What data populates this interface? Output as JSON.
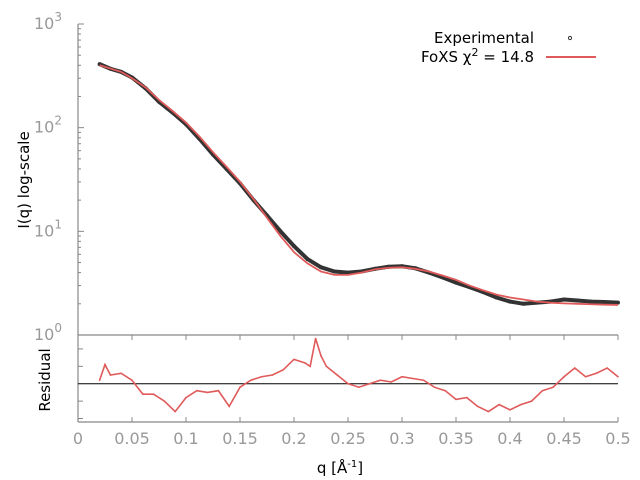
{
  "chart_data": [
    {
      "type": "line",
      "ylabel": "I(q) log-scale",
      "yscale": "log",
      "ylim": [
        1,
        1000
      ],
      "xlim": [
        0,
        0.5
      ],
      "ytick_labels": [
        {
          "base": "10",
          "exp": "0"
        },
        {
          "base": "10",
          "exp": "1"
        },
        {
          "base": "10",
          "exp": "2"
        },
        {
          "base": "10",
          "exp": "3"
        }
      ],
      "legend": {
        "position": "top-right",
        "experimental": "Experimental",
        "foxs_prefix": "FoXS χ",
        "foxs_exp": "2",
        "foxs_suffix": " = 14.8"
      },
      "grid": false,
      "colors": {
        "experimental": "#333333",
        "foxs": "#e05a5a"
      },
      "x": [
        0.02,
        0.03,
        0.04,
        0.05,
        0.0625,
        0.075,
        0.0875,
        0.1,
        0.1125,
        0.125,
        0.1375,
        0.15,
        0.1625,
        0.175,
        0.1875,
        0.2,
        0.2125,
        0.225,
        0.2375,
        0.25,
        0.2625,
        0.275,
        0.2875,
        0.3,
        0.3125,
        0.325,
        0.3375,
        0.35,
        0.3625,
        0.375,
        0.3875,
        0.4,
        0.4125,
        0.425,
        0.4375,
        0.45,
        0.4625,
        0.475,
        0.4875,
        0.5
      ],
      "series": [
        {
          "name": "Experimental",
          "values": [
            410,
            370,
            345,
            305,
            240,
            178,
            140,
            108,
            78,
            55,
            40,
            29,
            20,
            14.2,
            10,
            7.2,
            5.4,
            4.5,
            4.1,
            4.0,
            4.1,
            4.35,
            4.55,
            4.6,
            4.4,
            4.0,
            3.6,
            3.2,
            2.9,
            2.6,
            2.3,
            2.1,
            2.0,
            2.05,
            2.1,
            2.2,
            2.15,
            2.1,
            2.08,
            2.05
          ]
        },
        {
          "name": "FoXS χ2 = 14.8",
          "values": [
            400,
            372,
            345,
            300,
            245,
            185,
            145,
            112,
            82,
            58,
            42,
            30,
            20.5,
            13.5,
            9.0,
            6.3,
            4.9,
            4.1,
            3.8,
            3.8,
            4.0,
            4.3,
            4.45,
            4.5,
            4.35,
            4.1,
            3.75,
            3.4,
            3.0,
            2.7,
            2.45,
            2.3,
            2.2,
            2.1,
            2.05,
            2.02,
            2.0,
            1.98,
            1.96,
            1.95
          ]
        }
      ]
    },
    {
      "type": "line",
      "ylabel": "Residual",
      "xlabel_prefix": "q [Å",
      "xlabel_exp": "-1",
      "xlabel_suffix": "]",
      "xlim": [
        0,
        0.5
      ],
      "xtick_labels": [
        "0",
        "0.05",
        "0.1",
        "0.15",
        "0.2",
        "0.25",
        "0.3",
        "0.35",
        "0.4",
        "0.45",
        "0.5"
      ],
      "ylim": [
        -2.2,
        2.8
      ],
      "zero_line": 0,
      "colors": {
        "residual": "#e05a5a",
        "zero": "#000000"
      },
      "x": [
        0.02,
        0.025,
        0.03,
        0.04,
        0.05,
        0.06,
        0.07,
        0.08,
        0.09,
        0.1,
        0.11,
        0.12,
        0.13,
        0.14,
        0.15,
        0.16,
        0.17,
        0.18,
        0.19,
        0.2,
        0.21,
        0.215,
        0.22,
        0.225,
        0.23,
        0.24,
        0.25,
        0.26,
        0.27,
        0.28,
        0.29,
        0.3,
        0.31,
        0.32,
        0.33,
        0.34,
        0.35,
        0.36,
        0.37,
        0.38,
        0.39,
        0.4,
        0.41,
        0.42,
        0.43,
        0.44,
        0.45,
        0.46,
        0.47,
        0.48,
        0.49,
        0.5
      ],
      "values": [
        0.2,
        1.1,
        0.5,
        0.6,
        0.2,
        -0.6,
        -0.6,
        -1.0,
        -1.6,
        -0.8,
        -0.4,
        -0.5,
        -0.4,
        -1.3,
        -0.2,
        0.2,
        0.4,
        0.5,
        0.8,
        1.4,
        1.2,
        1.0,
        2.6,
        1.6,
        1.0,
        0.5,
        0.0,
        -0.2,
        0.0,
        0.2,
        0.1,
        0.4,
        0.3,
        0.2,
        -0.2,
        -0.4,
        -0.9,
        -0.8,
        -1.3,
        -1.6,
        -1.2,
        -1.5,
        -1.2,
        -1.0,
        -0.4,
        -0.2,
        0.4,
        0.9,
        0.4,
        0.6,
        0.9,
        0.4
      ]
    }
  ]
}
